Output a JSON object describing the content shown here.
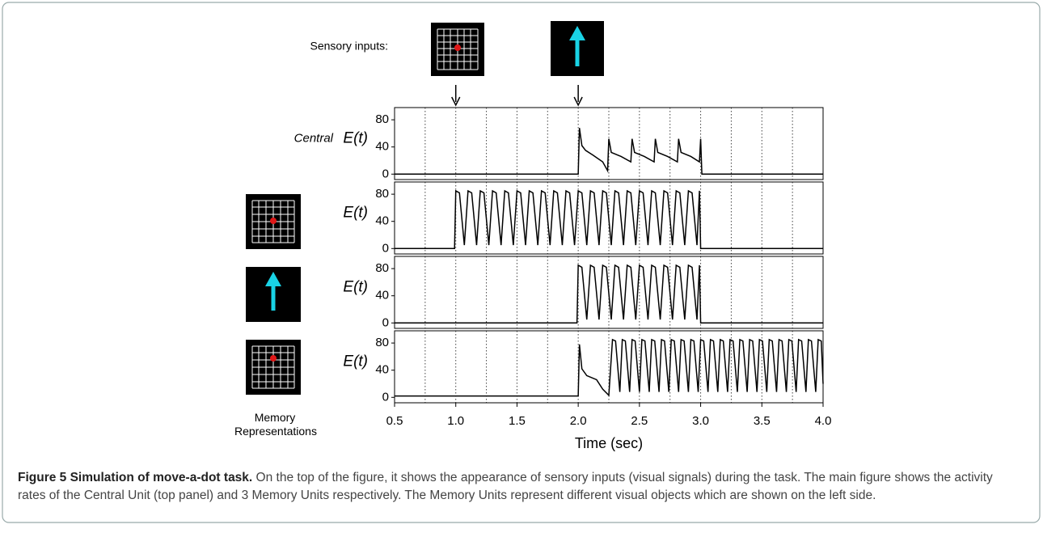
{
  "sensory_label": "Sensory inputs:",
  "memory_label": "Memory Representations",
  "input_times": [
    1.0,
    2.0
  ],
  "caption": {
    "label": "Figure 5 Simulation of move-a-dot task.",
    "text": "On the top of the figure, it shows the appearance of sensory inputs (visual signals) during the task. The main figure shows the activity rates of the Central Unit (top panel) and 3 Memory Units respectively. The Memory Units represent different visual objects which are shown on the left side."
  },
  "chart_data": [
    {
      "type": "line",
      "prefix": "Central",
      "ylabel": "E(t)",
      "xlim": [
        0.5,
        4.0
      ],
      "ylim": [
        -8,
        98
      ],
      "yticks": [
        0,
        40,
        80
      ],
      "vlines": [
        0.75,
        1.0,
        1.25,
        1.5,
        1.75,
        2.0,
        2.25,
        2.5,
        2.75,
        3.0,
        3.25,
        3.5,
        3.75
      ],
      "series": [
        {
          "color": "#000000",
          "x": [
            0.5,
            2.0,
            2.01,
            2.03,
            2.06,
            2.12,
            2.2,
            2.24,
            2.25,
            2.27,
            2.35,
            2.43,
            2.44,
            2.46,
            2.54,
            2.62,
            2.63,
            2.65,
            2.73,
            2.81,
            2.82,
            2.84,
            2.92,
            2.99,
            3.0,
            3.01,
            4.0
          ],
          "values": [
            0,
            0,
            68,
            42,
            35,
            28,
            18,
            5,
            52,
            32,
            26,
            18,
            52,
            32,
            26,
            18,
            52,
            32,
            26,
            18,
            52,
            32,
            26,
            18,
            52,
            0,
            0
          ]
        }
      ]
    },
    {
      "type": "line",
      "ylabel": "E(t)",
      "xlim": [
        0.5,
        4.0
      ],
      "ylim": [
        -8,
        98
      ],
      "yticks": [
        0,
        40,
        80
      ],
      "vlines": [
        0.75,
        1.0,
        1.25,
        1.5,
        1.75,
        2.0,
        2.25,
        2.5,
        2.75,
        3.0,
        3.25,
        3.5,
        3.75
      ],
      "series": [
        {
          "color": "#000000",
          "x": [
            0.5,
            0.99,
            1.0,
            1.03,
            1.07,
            1.1,
            1.13,
            1.17,
            1.2,
            1.23,
            1.27,
            1.3,
            1.33,
            1.37,
            1.4,
            1.43,
            1.47,
            1.5,
            1.53,
            1.57,
            1.6,
            1.63,
            1.67,
            1.7,
            1.73,
            1.77,
            1.8,
            1.83,
            1.87,
            1.9,
            1.93,
            1.97,
            2.0,
            2.03,
            2.07,
            2.1,
            2.13,
            2.17,
            2.2,
            2.23,
            2.27,
            2.3,
            2.33,
            2.37,
            2.4,
            2.43,
            2.47,
            2.5,
            2.53,
            2.57,
            2.6,
            2.63,
            2.67,
            2.7,
            2.73,
            2.77,
            2.8,
            2.83,
            2.87,
            2.9,
            2.93,
            2.97,
            2.99,
            3.0,
            4.0
          ],
          "values": [
            0,
            0,
            85,
            82,
            5,
            85,
            82,
            5,
            85,
            82,
            5,
            85,
            82,
            5,
            85,
            82,
            5,
            85,
            82,
            5,
            85,
            82,
            5,
            85,
            82,
            5,
            85,
            82,
            5,
            85,
            82,
            5,
            85,
            82,
            5,
            85,
            82,
            5,
            85,
            82,
            5,
            85,
            82,
            5,
            85,
            82,
            5,
            85,
            82,
            5,
            85,
            82,
            5,
            85,
            82,
            5,
            85,
            82,
            5,
            85,
            82,
            5,
            85,
            0,
            0
          ]
        }
      ]
    },
    {
      "type": "line",
      "ylabel": "E(t)",
      "xlim": [
        0.5,
        4.0
      ],
      "ylim": [
        -8,
        98
      ],
      "yticks": [
        0,
        40,
        80
      ],
      "vlines": [
        0.75,
        1.0,
        1.25,
        1.5,
        1.75,
        2.0,
        2.25,
        2.5,
        2.75,
        3.0,
        3.25,
        3.5,
        3.75
      ],
      "series": [
        {
          "color": "#000000",
          "x": [
            0.5,
            1.99,
            2.0,
            2.03,
            2.07,
            2.1,
            2.13,
            2.17,
            2.2,
            2.23,
            2.27,
            2.3,
            2.33,
            2.37,
            2.4,
            2.43,
            2.47,
            2.5,
            2.53,
            2.57,
            2.6,
            2.63,
            2.67,
            2.7,
            2.73,
            2.77,
            2.8,
            2.83,
            2.87,
            2.9,
            2.93,
            2.97,
            2.99,
            3.0,
            4.0
          ],
          "values": [
            0,
            0,
            85,
            82,
            5,
            85,
            82,
            5,
            85,
            82,
            5,
            85,
            82,
            5,
            85,
            82,
            5,
            85,
            82,
            5,
            85,
            82,
            5,
            85,
            82,
            5,
            85,
            82,
            5,
            85,
            82,
            5,
            85,
            0,
            0
          ]
        }
      ]
    },
    {
      "type": "line",
      "ylabel": "E(t)",
      "xlim": [
        0.5,
        4.0
      ],
      "ylim": [
        -8,
        98
      ],
      "yticks": [
        0,
        40,
        80
      ],
      "vlines": [
        0.75,
        1.0,
        1.25,
        1.5,
        1.75,
        2.0,
        2.25,
        2.5,
        2.75,
        3.0,
        3.25,
        3.5,
        3.75
      ],
      "xticks": [
        0.5,
        {
          "value": 1,
          "label": "1.0"
        },
        1.5,
        {
          "value": 2,
          "label": "2.0"
        },
        2.5,
        {
          "value": 3,
          "label": "3.0"
        },
        3.5,
        {
          "value": 4,
          "label": "4.0"
        }
      ],
      "xlabel": "Time (sec)",
      "series": [
        {
          "color": "#000000",
          "x": [
            0.5,
            2.0,
            2.01,
            2.03,
            2.07,
            2.15,
            2.2,
            2.25,
            2.28,
            2.305,
            2.34,
            2.36,
            2.385,
            2.42,
            2.44,
            2.465,
            2.5,
            2.52,
            2.545,
            2.58,
            2.6,
            2.625,
            2.66,
            2.68,
            2.705,
            2.74,
            2.76,
            2.785,
            2.82,
            2.84,
            2.865,
            2.9,
            2.92,
            2.945,
            2.98,
            3.0,
            3.025,
            3.06,
            3.08,
            3.105,
            3.14,
            3.16,
            3.185,
            3.22,
            3.24,
            3.265,
            3.3,
            3.32,
            3.345,
            3.38,
            3.4,
            3.425,
            3.46,
            3.48,
            3.505,
            3.54,
            3.56,
            3.585,
            3.62,
            3.64,
            3.665,
            3.7,
            3.72,
            3.745,
            3.78,
            3.8,
            3.825,
            3.86,
            3.88,
            3.905,
            3.94,
            3.96,
            3.985,
            4.0
          ],
          "values": [
            2,
            2,
            78,
            42,
            32,
            26,
            12,
            3,
            85,
            83,
            8,
            85,
            83,
            8,
            85,
            83,
            8,
            85,
            83,
            8,
            85,
            83,
            8,
            85,
            83,
            8,
            85,
            83,
            8,
            85,
            83,
            8,
            85,
            83,
            8,
            85,
            83,
            8,
            85,
            83,
            8,
            85,
            83,
            8,
            85,
            83,
            8,
            85,
            83,
            8,
            85,
            83,
            8,
            85,
            83,
            8,
            85,
            83,
            8,
            85,
            83,
            8,
            85,
            83,
            8,
            85,
            83,
            8,
            85,
            83,
            8,
            85,
            83,
            20
          ]
        }
      ]
    }
  ]
}
